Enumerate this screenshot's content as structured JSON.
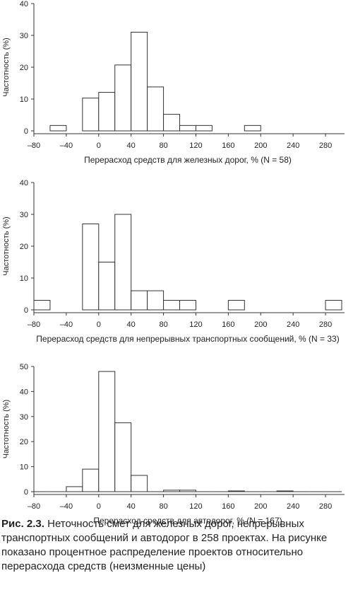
{
  "chart_data": [
    {
      "type": "bar",
      "xlabel": "Перерасход средств для железных дорог, % (N = 58)",
      "ylabel": "Частотность (%)",
      "xlim": [
        -80,
        300
      ],
      "ylim": [
        0,
        40
      ],
      "xticks": [
        -80,
        -40,
        0,
        40,
        80,
        120,
        160,
        200,
        240,
        280
      ],
      "yticks": [
        0,
        10,
        20,
        30,
        40
      ],
      "bin_width": 20,
      "bins": [
        {
          "x": -60,
          "value": 1.7
        },
        {
          "x": -20,
          "value": 10.3
        },
        {
          "x": 0,
          "value": 12.1
        },
        {
          "x": 20,
          "value": 20.7
        },
        {
          "x": 40,
          "value": 31.0
        },
        {
          "x": 60,
          "value": 13.8
        },
        {
          "x": 80,
          "value": 5.2
        },
        {
          "x": 100,
          "value": 1.7
        },
        {
          "x": 120,
          "value": 1.7
        },
        {
          "x": 180,
          "value": 1.7
        }
      ]
    },
    {
      "type": "bar",
      "xlabel": "Перерасход средств для непрерывных транспортных сообщений, % (N = 33)",
      "ylabel": "Частотность (%)",
      "xlim": [
        -80,
        300
      ],
      "ylim": [
        0,
        40
      ],
      "xticks": [
        -80,
        -40,
        0,
        40,
        80,
        120,
        160,
        200,
        240,
        280
      ],
      "yticks": [
        0,
        10,
        20,
        30,
        40
      ],
      "bin_width": 20,
      "bins": [
        {
          "x": -80,
          "value": 3
        },
        {
          "x": -20,
          "value": 27
        },
        {
          "x": 0,
          "value": 15
        },
        {
          "x": 20,
          "value": 30
        },
        {
          "x": 40,
          "value": 6
        },
        {
          "x": 60,
          "value": 6
        },
        {
          "x": 80,
          "value": 3
        },
        {
          "x": 100,
          "value": 3
        },
        {
          "x": 160,
          "value": 3
        },
        {
          "x": 280,
          "value": 3
        }
      ]
    },
    {
      "type": "bar",
      "xlabel": "Перерасход средств для автодорог, % (N = 167)",
      "ylabel": "Частотность (%)",
      "xlim": [
        -80,
        300
      ],
      "ylim": [
        0,
        50
      ],
      "xticks": [
        -80,
        -40,
        0,
        40,
        80,
        120,
        160,
        200,
        240,
        280
      ],
      "yticks": [
        0,
        10,
        20,
        30,
        40,
        50
      ],
      "bin_width": 20,
      "bins": [
        {
          "x": -80,
          "value": 0
        },
        {
          "x": -60,
          "value": 0
        },
        {
          "x": -40,
          "value": 2
        },
        {
          "x": -20,
          "value": 9
        },
        {
          "x": 0,
          "value": 48
        },
        {
          "x": 20,
          "value": 27.5
        },
        {
          "x": 40,
          "value": 6.5
        },
        {
          "x": 60,
          "value": 0
        },
        {
          "x": 80,
          "value": 0.6
        },
        {
          "x": 100,
          "value": 0.6
        },
        {
          "x": 120,
          "value": 0
        },
        {
          "x": 140,
          "value": 0
        },
        {
          "x": 160,
          "value": 0.3
        },
        {
          "x": 180,
          "value": 0
        },
        {
          "x": 200,
          "value": 0
        },
        {
          "x": 220,
          "value": 0.3
        },
        {
          "x": 240,
          "value": 0
        },
        {
          "x": 260,
          "value": 0
        },
        {
          "x": 280,
          "value": 0
        }
      ]
    }
  ],
  "caption": {
    "label": "Рис. 2.3.",
    "text": " Неточность смет для железных дорог, непрерывных транспортных сообщений и автодорог в 258 проектах. На рисунке показано процентное распределение проектов относительно перерасхода средств (неизменные цены)"
  }
}
